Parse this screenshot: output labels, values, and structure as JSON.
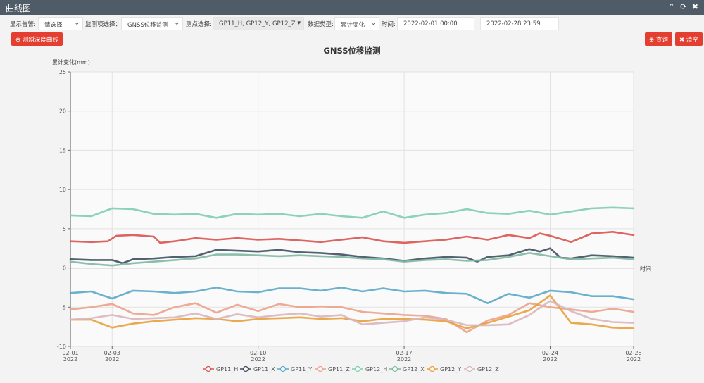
{
  "window": {
    "title": "曲线图",
    "collapse_icon": "chevron-up-icon",
    "refresh_icon": "refresh-icon",
    "close_icon": "close-icon"
  },
  "filters": {
    "alarm_label": "显示告警:",
    "alarm_value": "请选择",
    "monitor_label": "监测项选择：",
    "monitor_value": "GNSS位移监测",
    "points_label": "测点选择:",
    "points_value": "GP11_H, GP12_Y, GP12_Z",
    "datatype_label": "数据类型:",
    "datatype_value": "累计变化",
    "time_label": "时间:",
    "start_time": "2022-02-01 00:00",
    "end_time": "2022-02-28 23:59"
  },
  "buttons": {
    "depth_curve": "测斜深度曲线",
    "query": "查询",
    "clear": "清空"
  },
  "chart_data": {
    "type": "line",
    "title": "GNSS位移监测",
    "ylabel": "累计变化(mm)",
    "xlabel": "时间",
    "ylim": [
      -10,
      25
    ],
    "yticks": [
      "25",
      "20",
      "15",
      "10",
      "5",
      "0",
      "-5",
      "-10"
    ],
    "x_range_days": [
      1,
      28
    ],
    "xticks": [
      {
        "day": 1,
        "label": "02-01",
        "year": "2022"
      },
      {
        "day": 3,
        "label": "02-03",
        "year": "2022"
      },
      {
        "day": 10,
        "label": "02-10",
        "year": "2022"
      },
      {
        "day": 17,
        "label": "02-17",
        "year": "2022"
      },
      {
        "day": 24,
        "label": "02-24",
        "year": "2022"
      },
      {
        "day": 28,
        "label": "02-28",
        "year": "2022"
      }
    ],
    "series": [
      {
        "name": "GP11_H",
        "color": "#d9534f",
        "x": [
          1,
          2,
          2.8,
          3.2,
          4,
          5,
          5.3,
          6,
          7,
          8,
          9,
          10,
          11,
          12,
          13,
          14,
          15,
          16,
          17,
          18,
          19,
          20,
          21,
          22,
          23,
          23.5,
          24,
          25,
          26,
          27,
          28
        ],
        "y": [
          3.4,
          3.3,
          3.4,
          4.1,
          4.2,
          4.0,
          3.2,
          3.4,
          3.8,
          3.6,
          3.8,
          3.6,
          3.7,
          3.5,
          3.3,
          3.6,
          3.9,
          3.4,
          3.2,
          3.4,
          3.6,
          4.0,
          3.6,
          4.2,
          3.8,
          4.4,
          4.1,
          3.3,
          4.4,
          4.6,
          4.2
        ]
      },
      {
        "name": "GP11_X",
        "color": "#3f4f5f",
        "x": [
          1,
          2,
          3,
          3.5,
          4,
          5,
          6,
          7,
          8,
          9,
          10,
          11,
          12,
          13,
          14,
          15,
          16,
          17,
          18,
          19,
          20,
          20.5,
          21,
          22,
          23,
          23.5,
          24,
          24.5,
          25,
          26,
          27,
          28
        ],
        "y": [
          1.1,
          1.0,
          1.0,
          0.6,
          1.1,
          1.2,
          1.4,
          1.5,
          2.3,
          2.2,
          2.1,
          2.3,
          2.0,
          1.9,
          1.7,
          1.4,
          1.2,
          0.9,
          1.2,
          1.4,
          1.3,
          0.8,
          1.4,
          1.6,
          2.4,
          2.1,
          2.5,
          1.3,
          1.2,
          1.6,
          1.5,
          1.3
        ]
      },
      {
        "name": "GP11_Y",
        "color": "#5ba8c8",
        "x": [
          1,
          2,
          3,
          4,
          5,
          6,
          7,
          8,
          9,
          10,
          11,
          12,
          13,
          14,
          15,
          16,
          17,
          18,
          19,
          20,
          21,
          22,
          23,
          24,
          25,
          26,
          27,
          28
        ],
        "y": [
          -3.2,
          -3.0,
          -3.9,
          -2.9,
          -3.0,
          -3.2,
          -3.0,
          -2.5,
          -3.0,
          -3.1,
          -2.6,
          -2.6,
          -2.9,
          -2.5,
          -3.0,
          -2.6,
          -3.0,
          -2.9,
          -3.2,
          -3.3,
          -4.5,
          -3.3,
          -3.8,
          -2.9,
          -3.1,
          -3.6,
          -3.6,
          -4.0
        ]
      },
      {
        "name": "GP11_Z",
        "color": "#eba28a",
        "x": [
          1,
          2,
          3,
          4,
          5,
          6,
          7,
          8,
          9,
          10,
          11,
          12,
          13,
          14,
          15,
          16,
          17,
          18,
          19,
          20,
          21,
          22,
          23,
          24,
          25,
          26,
          27,
          28
        ],
        "y": [
          -5.3,
          -5.0,
          -4.6,
          -5.8,
          -6.0,
          -5.0,
          -4.5,
          -5.7,
          -4.7,
          -5.5,
          -4.6,
          -5.0,
          -4.9,
          -5.0,
          -5.6,
          -5.8,
          -6.0,
          -6.1,
          -6.5,
          -8.2,
          -6.7,
          -6.0,
          -4.5,
          -5.0,
          -5.3,
          -5.6,
          -5.2,
          -5.6
        ]
      },
      {
        "name": "GP12_H",
        "color": "#7fcdb0",
        "x": [
          1,
          2,
          3,
          4,
          5,
          6,
          7,
          8,
          9,
          10,
          11,
          12,
          13,
          14,
          15,
          16,
          17,
          18,
          19,
          20,
          21,
          22,
          23,
          24,
          25,
          26,
          27,
          28
        ],
        "y": [
          6.7,
          6.6,
          7.6,
          7.5,
          6.9,
          6.8,
          6.9,
          6.4,
          6.9,
          6.8,
          6.9,
          6.6,
          6.9,
          6.6,
          6.4,
          7.2,
          6.4,
          6.8,
          7.0,
          7.5,
          7.0,
          6.9,
          7.3,
          6.8,
          7.2,
          7.6,
          7.7,
          7.6
        ]
      },
      {
        "name": "GP12_X",
        "color": "#7fb8a2",
        "x": [
          1,
          2,
          3,
          4,
          5,
          6,
          7,
          8,
          9,
          10,
          11,
          12,
          13,
          14,
          15,
          16,
          17,
          18,
          19,
          20,
          21,
          22,
          23,
          24,
          25,
          26,
          27,
          28
        ],
        "y": [
          0.8,
          0.5,
          0.3,
          0.6,
          0.8,
          1.0,
          1.2,
          1.7,
          1.7,
          1.6,
          1.5,
          1.6,
          1.5,
          1.4,
          1.2,
          1.1,
          0.8,
          1.0,
          1.1,
          0.9,
          1.0,
          1.4,
          1.9,
          1.5,
          1.1,
          1.2,
          1.3,
          1.1
        ]
      },
      {
        "name": "GP12_Y",
        "color": "#e9a03c",
        "x": [
          1,
          2,
          3,
          4,
          5,
          6,
          7,
          8,
          9,
          10,
          11,
          12,
          13,
          14,
          15,
          16,
          17,
          18,
          19,
          20,
          21,
          22,
          23,
          24,
          25,
          26,
          27,
          28
        ],
        "y": [
          -6.6,
          -6.6,
          -7.6,
          -7.1,
          -6.8,
          -6.6,
          -6.4,
          -6.5,
          -6.8,
          -6.5,
          -6.4,
          -6.3,
          -6.5,
          -6.4,
          -6.8,
          -6.5,
          -6.5,
          -6.6,
          -6.8,
          -7.7,
          -7.0,
          -6.2,
          -5.4,
          -3.5,
          -7.0,
          -7.2,
          -7.6,
          -7.7
        ]
      },
      {
        "name": "GP12_Z",
        "color": "#d8b6ba",
        "x": [
          1,
          2,
          3,
          4,
          5,
          6,
          7,
          8,
          9,
          10,
          11,
          12,
          13,
          14,
          15,
          16,
          17,
          18,
          19,
          20,
          21,
          22,
          23,
          24,
          25,
          26,
          27,
          28
        ],
        "y": [
          -6.6,
          -6.4,
          -6.0,
          -6.5,
          -6.4,
          -6.3,
          -5.8,
          -6.5,
          -5.9,
          -6.3,
          -6.0,
          -5.8,
          -6.2,
          -6.0,
          -7.2,
          -7.0,
          -6.8,
          -6.3,
          -6.6,
          -7.3,
          -7.3,
          -7.2,
          -6.0,
          -4.2,
          -5.5,
          -6.5,
          -6.9,
          -7.0
        ]
      }
    ]
  }
}
